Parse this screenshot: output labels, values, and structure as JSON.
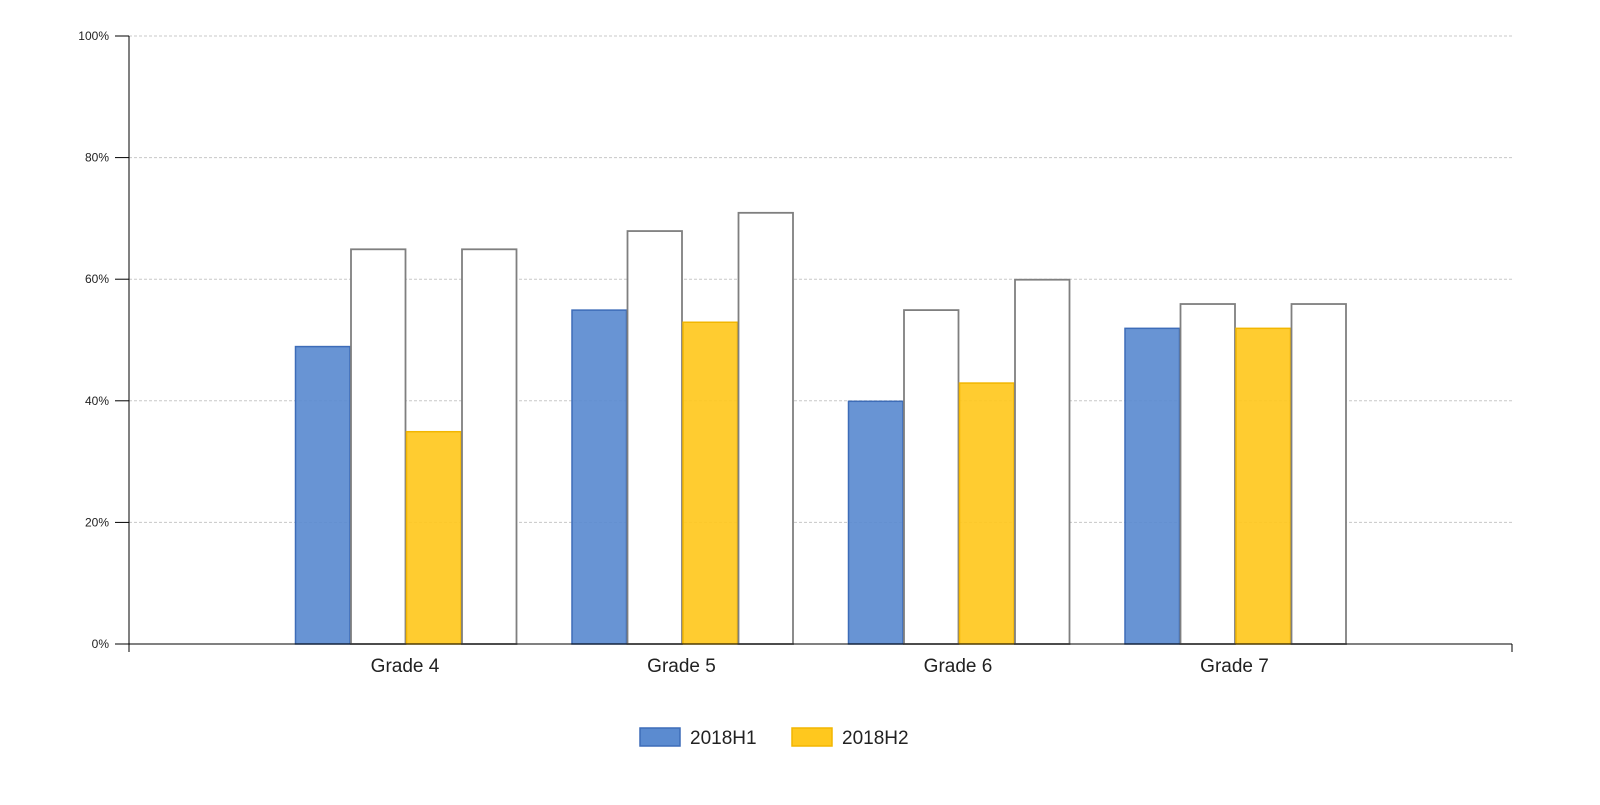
{
  "chart_data": {
    "type": "bar",
    "title": "",
    "xlabel": "",
    "ylabel": "",
    "categories": [
      "Grade 4",
      "Grade 5",
      "Grade 6",
      "Grade 7"
    ],
    "ylim": [
      0,
      100
    ],
    "yticks": [
      "0%",
      "20%",
      "40%",
      "60%",
      "80%",
      "100%"
    ],
    "grid": true,
    "legend": "bottom-center",
    "series": [
      {
        "name": "2018H1",
        "values": [
          49,
          55,
          40,
          52
        ],
        "fill": "#5b8bd0",
        "stroke": "#3d6cb8"
      },
      {
        "name": "",
        "values": [
          65,
          68,
          55,
          56
        ],
        "fill": "#ffffff",
        "stroke": "#7f7f7f",
        "outline": true
      },
      {
        "name": "2018H2",
        "values": [
          35,
          53,
          43,
          52
        ],
        "fill": "#ffc81e",
        "stroke": "#f2b600"
      },
      {
        "name": "",
        "values": [
          65,
          71,
          60,
          56
        ],
        "fill": "#ffffff",
        "stroke": "#7f7f7f",
        "outline": true
      }
    ],
    "legend_entries": [
      {
        "label": "2018H1",
        "fill": "#5b8bd0",
        "stroke": "#3d6cb8"
      },
      {
        "label": "2018H2",
        "fill": "#ffc81e",
        "stroke": "#f2b600"
      }
    ]
  }
}
